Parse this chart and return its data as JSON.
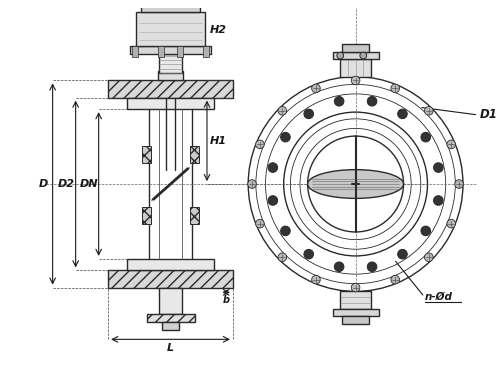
{
  "background_color": "#ffffff",
  "line_color": "#2a2a2a",
  "dim_color": "#1a1a1a",
  "figsize": [
    5.0,
    3.69
  ],
  "dpi": 100,
  "labels": {
    "H2": "H2",
    "H1": "H1",
    "D": "D",
    "D2": "D2",
    "DN": "DN",
    "D1": "D1",
    "b": "b",
    "L": "L",
    "nOd": "n-Ød"
  }
}
